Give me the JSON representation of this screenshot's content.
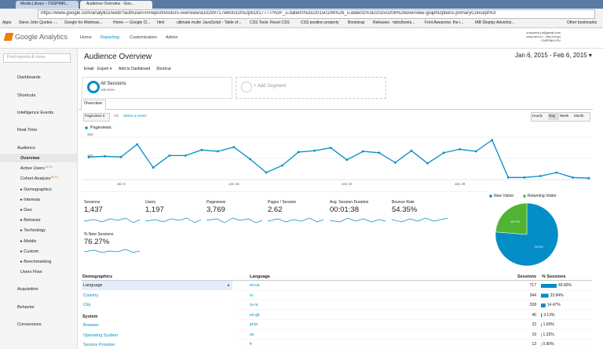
{
  "browser": {
    "tabs": [
      "Media Library ‹ CNSPMKI...",
      "Audience Overview - Goo..."
    ],
    "url": "https://www.google.com/analytics/web/?authuser=0#report/visitors-overview/a33299717w60532052p61917777/%3F_u.date00%3D20150106%26_u.date01%3D20150206%26overview-graphOptions.primaryConcept%3",
    "bookmarks": [
      "Apps",
      "Steve Jobs Quotes -...",
      "Google for Webmas...",
      "Home — Google Cl...",
      "html",
      "ultimate multe",
      "JavaScript - Table of...",
      "CSS Tools: Reset CSS",
      "CSS position property",
      "Bootstrap",
      "Releases · twbs/boots...",
      "Font Awesome, the i...",
      "IAB Display Advertisi...",
      "Other bookmarks"
    ]
  },
  "header": {
    "logo": "Google Analytics",
    "nav": [
      "Home",
      "Reporting",
      "Customization",
      "Admin"
    ],
    "account": [
      "cnspmexi.pt@gmail.com",
      "cnspmexi.ru - http://cnspmexi.ru/",
      "CNSPMKI.RU"
    ]
  },
  "sidebar": {
    "search": "Find reports & more",
    "top_items": [
      "Dashboards",
      "Shortcuts",
      "Intelligence Events",
      "Real-Time",
      "Audience"
    ],
    "audience_items": [
      {
        "label": "Overview"
      },
      {
        "label": "Active Users",
        "badge": "BETA"
      },
      {
        "label": "Cohort Analysis",
        "badge": "BETA"
      },
      {
        "label": "▸ Demographics"
      },
      {
        "label": "▸ Interests"
      },
      {
        "label": "▸ Geo"
      },
      {
        "label": "▸ Behavior"
      },
      {
        "label": "▸ Technology"
      },
      {
        "label": "▸ Mobile"
      },
      {
        "label": "▸ Custom"
      },
      {
        "label": "▸ Benchmarking"
      },
      {
        "label": "Users Flow"
      }
    ],
    "bottom_items": [
      "Acquisition",
      "Behavior",
      "Conversions"
    ]
  },
  "report": {
    "title": "Audience Overview",
    "date_range": "Jan 6, 2015 - Feb 6, 2015 ▾",
    "toolbar": [
      "Email",
      "Export ▾",
      "Add to Dashboard",
      "Shortcut"
    ],
    "segment": {
      "name": "All Sessions",
      "share": "100.00%",
      "add": "+ Add Segment"
    },
    "tab": "Overview",
    "metric_select": "Pageviews ▾",
    "vs": "VS.",
    "select_metric": "Select a metric",
    "granularity": [
      "Hourly",
      "Day",
      "Week",
      "Month"
    ]
  },
  "overview_chart": {
    "type": "line",
    "x": [
      "",
      null,
      "Jan 8",
      null,
      null,
      null,
      null,
      null,
      null,
      "Jan 15",
      null,
      null,
      null,
      null,
      null,
      null,
      "Jan 22",
      null,
      null,
      null,
      null,
      null,
      null,
      "Jan 29",
      null,
      null,
      null,
      null,
      null,
      null,
      null,
      null
    ],
    "series": [
      {
        "name": "Pageviews",
        "color": "#058dc7",
        "values": [
          160,
          165,
          160,
          250,
          85,
          170,
          170,
          210,
          200,
          230,
          145,
          50,
          100,
          195,
          205,
          225,
          140,
          200,
          190,
          120,
          205,
          115,
          190,
          215,
          200,
          280,
          15,
          15,
          25,
          50,
          15,
          10
        ]
      }
    ],
    "ylim": [
      0,
      300
    ],
    "yticks": [
      150,
      300
    ],
    "grid": true
  },
  "metrics": [
    {
      "label": "Sessions",
      "value": "1,437"
    },
    {
      "label": "Users",
      "value": "1,197"
    },
    {
      "label": "Pageviews",
      "value": "3,769"
    },
    {
      "label": "Pages / Session",
      "value": "2.62"
    },
    {
      "label": "Avg. Session Duration",
      "value": "00:01:38"
    },
    {
      "label": "Bounce Rate",
      "value": "54.35%"
    },
    {
      "label": "% New Sessions",
      "value": "76.27%"
    }
  ],
  "visitor_chart": {
    "type": "pie",
    "categories": [
      "New Visitor",
      "Returning Visitor"
    ],
    "values": [
      76.3,
      23.7
    ],
    "value_labels": [
      "76.3%",
      "23.7%"
    ],
    "colors": [
      "#058dc7",
      "#50b432"
    ]
  },
  "demographics": {
    "heading": "Demographics",
    "items": [
      "Language",
      "Country",
      "City"
    ],
    "selected_arrow": "▸",
    "system_heading": "System",
    "system_items": [
      "Browser",
      "Operating System",
      "Service Provider"
    ]
  },
  "language_table": {
    "headers": [
      "Language",
      "Sessions",
      "% Sessions"
    ],
    "bar_color": "#058dc7",
    "rows": [
      [
        "en-us",
        717,
        49.9,
        "49.90%"
      ],
      [
        "ru",
        344,
        23.94,
        "23.94%"
      ],
      [
        "ru-ru",
        208,
        14.47,
        "14.47%"
      ],
      [
        "en-gb",
        45,
        3.13,
        "3.13%"
      ],
      [
        "pt-br",
        23,
        1.6,
        "1.60%"
      ],
      [
        "es",
        19,
        1.32,
        "1.32%"
      ],
      [
        "fr",
        13,
        0.9,
        "0.90%"
      ]
    ]
  }
}
